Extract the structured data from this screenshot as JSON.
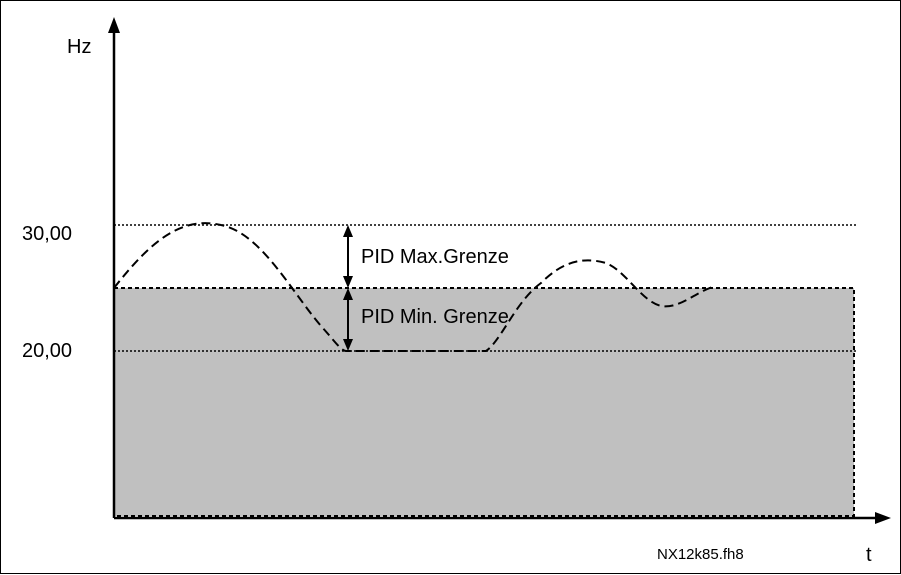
{
  "axes": {
    "y_unit": "Hz",
    "x_unit": "t",
    "y_ticks": [
      "30,00",
      "20,00"
    ]
  },
  "annotations": {
    "pid_max": "PID Max.Grenze",
    "pid_min": "PID Min. Grenze"
  },
  "figure_id": "NX12k85.fh8",
  "colors": {
    "band_fill": "#c0c0c0",
    "line": "#000000",
    "background": "#ffffff"
  }
}
